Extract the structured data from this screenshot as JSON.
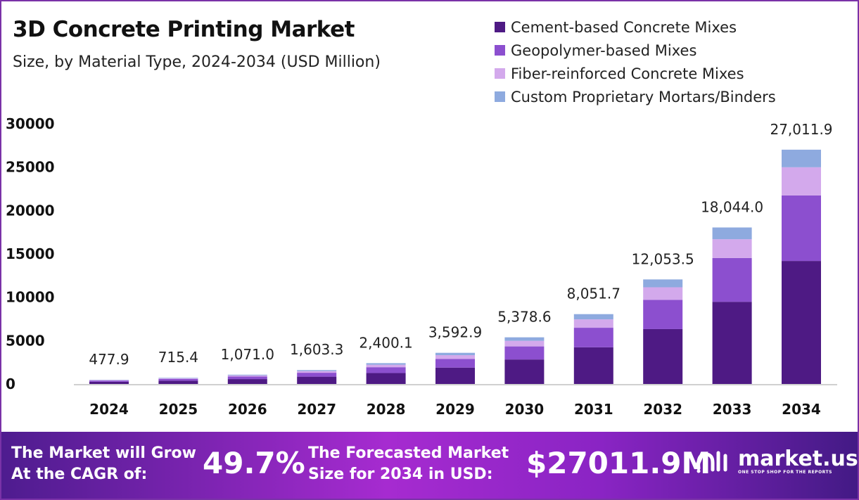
{
  "chart_data": {
    "type": "bar",
    "stacked": true,
    "title": "3D Concrete Printing Market",
    "subtitle": "Size, by Material Type, 2024-2034 (USD Million)",
    "categories": [
      "2024",
      "2025",
      "2026",
      "2027",
      "2028",
      "2029",
      "2030",
      "2031",
      "2032",
      "2033",
      "2034"
    ],
    "series": [
      {
        "name": "Cement-based Concrete Mixes",
        "color": "#4e1a84",
        "values": [
          250.9,
          375.6,
          562.3,
          841.7,
          1260.1,
          1886.3,
          2823.8,
          4227.1,
          6328.1,
          9473.1,
          14181.2
        ]
      },
      {
        "name": "Geopolymer-based Mixes",
        "color": "#8c4fcf",
        "values": [
          133.8,
          200.3,
          299.9,
          448.9,
          672.0,
          1006.0,
          1506.0,
          2254.5,
          3375.0,
          5052.3,
          7563.3
        ]
      },
      {
        "name": "Fiber-reinforced Concrete Mixes",
        "color": "#d3a9ec",
        "values": [
          57.3,
          85.8,
          128.5,
          192.4,
          288.0,
          431.1,
          645.4,
          966.2,
          1446.4,
          2165.3,
          3241.4
        ]
      },
      {
        "name": "Custom Proprietary Mortars/Binders",
        "color": "#8eaadf",
        "values": [
          35.9,
          53.7,
          80.3,
          120.3,
          180.0,
          269.5,
          403.4,
          603.9,
          904.0,
          1353.3,
          2025.9
        ]
      }
    ],
    "totals": [
      "477.9",
      "715.4",
      "1,071.0",
      "1,603.3",
      "2,400.1",
      "3,592.9",
      "5,378.6",
      "8,051.7",
      "12,053.5",
      "18,044.0",
      "27,011.9"
    ],
    "yticks": [
      "0",
      "5000",
      "10000",
      "15000",
      "20000",
      "25000",
      "30000"
    ],
    "ylim": [
      0,
      30000
    ],
    "grid": false,
    "legend": "top-right",
    "xlabel": "",
    "ylabel": ""
  },
  "banner": {
    "cagr_label_1": "The Market will Grow",
    "cagr_label_2": "At the CAGR of:",
    "cagr_value": "49.7%",
    "forecast_label_1": "The Forecasted Market",
    "forecast_label_2": "Size for 2034 in USD:",
    "forecast_value": "$27011.9M",
    "logo_name": "market.us",
    "logo_tagline": "ONE STOP SHOP FOR THE REPORTS"
  }
}
